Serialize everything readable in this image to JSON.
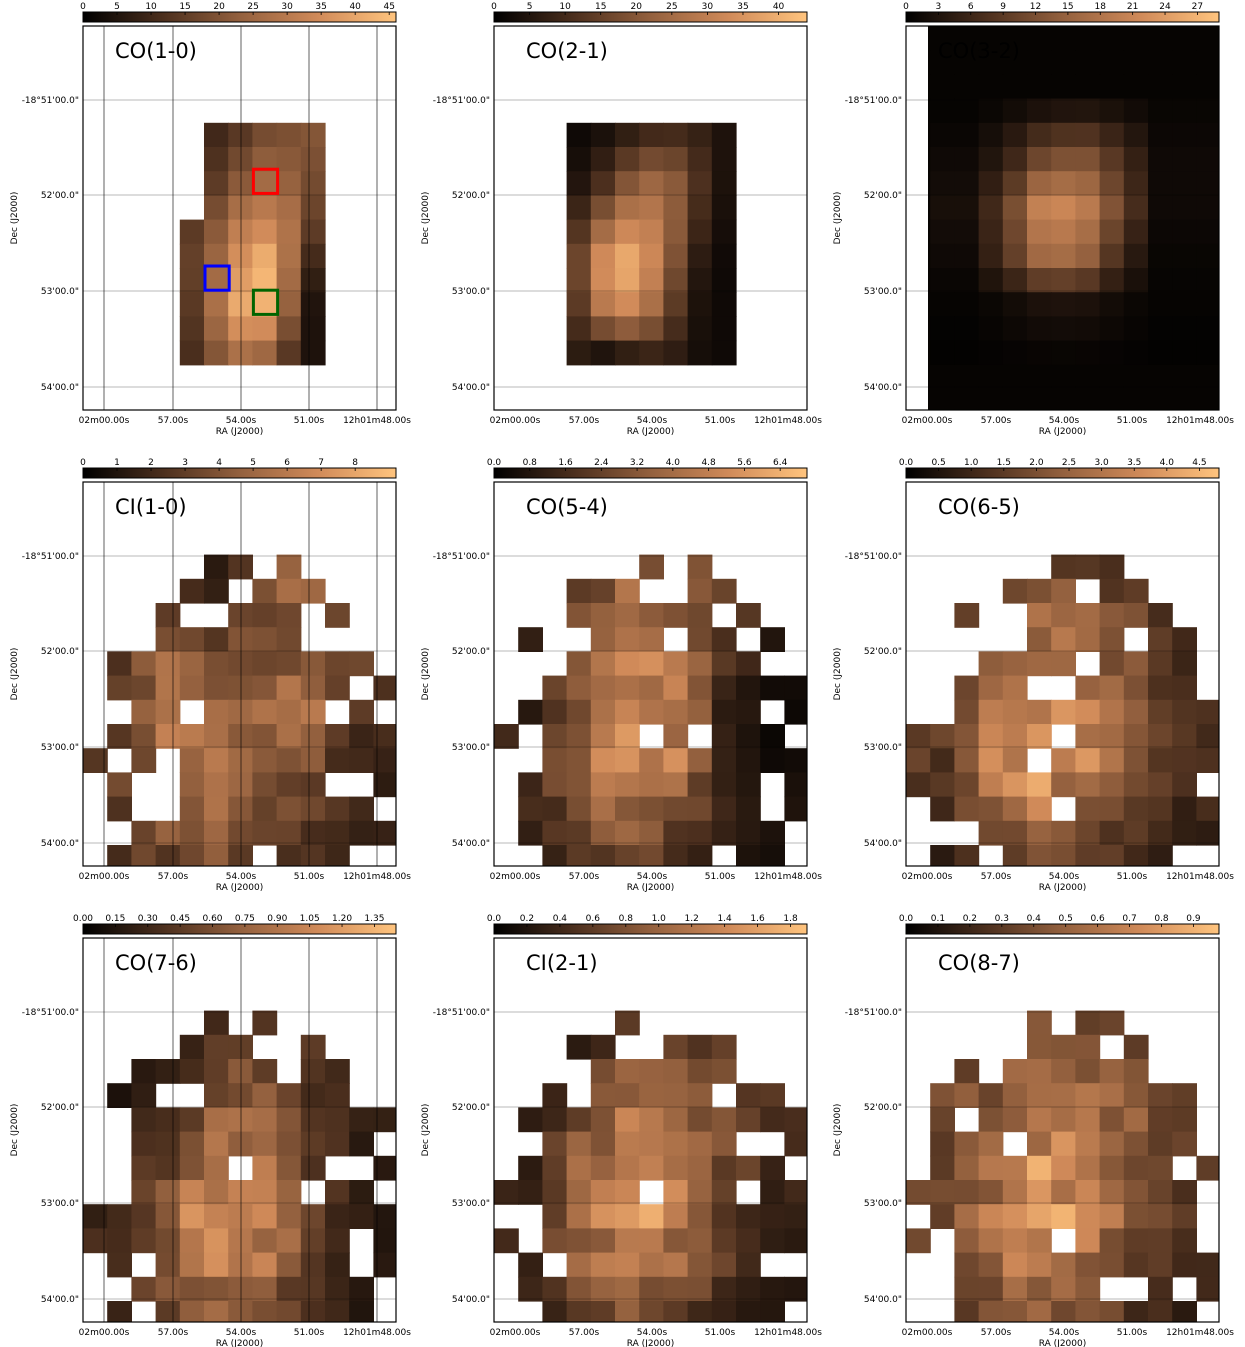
{
  "figure": {
    "colormap": "copper",
    "colormap_stops": [
      "#000000",
      "#4a2e1d",
      "#93603e",
      "#d08a59",
      "#ffc47e"
    ],
    "grid_color": "#000000",
    "common_x_ticks": [
      "02m00.00s",
      "57.00s",
      "54.00s",
      "51.00s",
      "12h01m48.00s"
    ],
    "common_y_ticks": [
      "-18°51'00.0\"",
      "52'00.0\"",
      "53'00.0\"",
      "54'00.0\""
    ],
    "x_label": "RA (J2000)",
    "y_label": "Dec (J2000)"
  },
  "chart_data": [
    {
      "type": "heatmap",
      "title": "CO(1-0)",
      "colorbar_ticks": [
        "0",
        "5",
        "10",
        "15",
        "20",
        "25",
        "30",
        "35",
        "40",
        "45"
      ],
      "vmax": 46,
      "x_ticks": [
        "02m00.00s",
        "57.00s",
        "54.00s",
        "51.00s",
        "12h01m48.00s"
      ],
      "y_ticks": [
        "-18°51'00.0\"",
        "52'00.0\"",
        "53'00.0\"",
        "54'00.0\""
      ],
      "xlabel": "RA (J2000)",
      "ylabel": "Dec (J2000)",
      "boxes": [
        {
          "color": "#ff0000",
          "col": 7,
          "row": 6
        },
        {
          "color": "#0000ff",
          "col": 5,
          "row": 10
        },
        {
          "color": "#006400",
          "col": 7,
          "row": 11
        }
      ],
      "grid_rows": [
        "    ########    ",
        "    ########    ",
        "    ########    ",
        "    ########    ",
        "   #########    ",
        "   #########    ",
        "   #########    ",
        "   #########    ",
        "   #########    ",
        "   #########    "
      ],
      "values": [
        [
          0.18,
          0.22,
          0.3,
          0.4,
          0.42,
          0.45
        ],
        [
          0.22,
          0.3,
          0.45,
          0.55,
          0.5,
          0.4
        ],
        [
          0.3,
          0.45,
          0.65,
          0.7,
          0.62,
          0.35
        ],
        [
          0.35,
          0.55,
          0.8,
          0.95,
          0.6,
          0.2
        ],
        [
          0.3,
          0.6,
          0.9,
          0.92,
          0.5,
          0.1
        ],
        [
          0.25,
          0.45,
          0.6,
          0.55,
          0.3,
          0.1
        ]
      ]
    },
    {
      "type": "heatmap",
      "title": "CO(2-1)",
      "colorbar_ticks": [
        "0",
        "5",
        "10",
        "15",
        "20",
        "25",
        "30",
        "35",
        "40"
      ],
      "vmax": 44,
      "x_ticks": [
        "02m00.00s",
        "57.00s",
        "54.00s",
        "51.00s",
        "12h01m48.00s"
      ],
      "y_ticks": [
        "-18°51'00.0\"",
        "52'00.0\"",
        "53'00.0\"",
        "54'00.0\""
      ],
      "xlabel": "RA (J2000)",
      "ylabel": "Dec (J2000)",
      "values": [
        [
          0.05,
          0.1,
          0.2,
          0.25,
          0.2,
          0.1
        ],
        [
          0.1,
          0.25,
          0.5,
          0.55,
          0.3,
          0.1
        ],
        [
          0.25,
          0.55,
          0.75,
          0.6,
          0.25,
          0.08
        ],
        [
          0.4,
          0.9,
          0.95,
          0.55,
          0.15,
          0.05
        ],
        [
          0.3,
          0.7,
          0.75,
          0.4,
          0.1,
          0.05
        ],
        [
          0.15,
          0.1,
          0.2,
          0.2,
          0.08,
          0.05
        ]
      ]
    },
    {
      "type": "heatmap",
      "title": "CO(3-2)",
      "colorbar_ticks": [
        "0",
        "3",
        "6",
        "9",
        "12",
        "15",
        "18",
        "21",
        "24",
        "27"
      ],
      "vmax": 29,
      "x_ticks": [
        "02m00.00s",
        "57.00s",
        "54.00s",
        "51.00s",
        "12h01m48.00s"
      ],
      "y_ticks": [
        "-18°51'00.0\"",
        "52'00.0\"",
        "53'00.0\"",
        "54'00.0\""
      ],
      "xlabel": "RA (J2000)",
      "ylabel": "Dec (J2000)",
      "values": [
        [
          0.02,
          0.05,
          0.1,
          0.12,
          0.08,
          0.03
        ],
        [
          0.05,
          0.15,
          0.4,
          0.45,
          0.25,
          0.05
        ],
        [
          0.08,
          0.3,
          0.75,
          0.7,
          0.35,
          0.05
        ],
        [
          0.05,
          0.25,
          0.6,
          0.55,
          0.2,
          0.03
        ],
        [
          0.02,
          0.05,
          0.1,
          0.1,
          0.05,
          0.02
        ],
        [
          0.01,
          0.02,
          0.03,
          0.03,
          0.02,
          0.01
        ]
      ]
    },
    {
      "type": "heatmap",
      "title": "CI(1-0)",
      "colorbar_ticks": [
        "0",
        "1",
        "2",
        "3",
        "4",
        "5",
        "6",
        "7",
        "8"
      ],
      "vmax": 9.2,
      "x_ticks": [
        "02m00.00s",
        "57.00s",
        "54.00s",
        "51.00s",
        "12h01m48.00s"
      ],
      "y_ticks": [
        "-18°51'00.0\"",
        "52'00.0\"",
        "53'00.0\"",
        "54'00.0\""
      ],
      "xlabel": "RA (J2000)",
      "ylabel": "Dec (J2000)",
      "values": [
        [
          0.1,
          0.3,
          0.15,
          0.4,
          0.6,
          0.3
        ],
        [
          0.25,
          0.45,
          0.35,
          0.4,
          0.5,
          0.35
        ],
        [
          0.3,
          0.55,
          0.45,
          0.5,
          0.6,
          0.3
        ],
        [
          0.35,
          0.6,
          0.7,
          0.55,
          0.4,
          0.2
        ],
        [
          0.3,
          0.45,
          0.5,
          0.4,
          0.3,
          0.2
        ],
        [
          0.25,
          0.3,
          0.35,
          0.3,
          0.2,
          0.1
        ]
      ]
    },
    {
      "type": "heatmap",
      "title": "CO(5-4)",
      "colorbar_ticks": [
        "0.0",
        "0.8",
        "1.6",
        "2.4",
        "3.2",
        "4.0",
        "4.8",
        "5.6",
        "6.4"
      ],
      "vmax": 7.0,
      "x_ticks": [
        "02m00.00s",
        "57.00s",
        "54.00s",
        "51.00s",
        "12h01m48.00s"
      ],
      "y_ticks": [
        "-18°51'00.0\"",
        "52'00.0\"",
        "53'00.0\"",
        "54'00.0\""
      ],
      "xlabel": "RA (J2000)",
      "ylabel": "Dec (J2000)",
      "values": [
        [
          0.1,
          0.3,
          0.5,
          0.45,
          0.3,
          0.2
        ],
        [
          0.2,
          0.4,
          0.65,
          0.6,
          0.35,
          0.15
        ],
        [
          0.15,
          0.45,
          0.75,
          0.6,
          0.2,
          0.05
        ],
        [
          0.2,
          0.5,
          0.85,
          0.7,
          0.15,
          0.05
        ],
        [
          0.2,
          0.4,
          0.5,
          0.4,
          0.2,
          0.1
        ],
        [
          0.15,
          0.2,
          0.25,
          0.2,
          0.1,
          0.05
        ]
      ]
    },
    {
      "type": "heatmap",
      "title": "CO(6-5)",
      "colorbar_ticks": [
        "0.0",
        "0.5",
        "1.0",
        "1.5",
        "2.0",
        "2.5",
        "3.0",
        "3.5",
        "4.0",
        "4.5"
      ],
      "vmax": 4.8,
      "x_ticks": [
        "02m00.00s",
        "57.00s",
        "54.00s",
        "51.00s",
        "12h01m48.00s"
      ],
      "y_ticks": [
        "-18°51'00.0\"",
        "52'00.0\"",
        "53'00.0\"",
        "54'00.0\""
      ],
      "xlabel": "RA (J2000)",
      "ylabel": "Dec (J2000)",
      "values": [
        [
          0.15,
          0.3,
          0.4,
          0.35,
          0.25,
          0.15
        ],
        [
          0.25,
          0.45,
          0.55,
          0.5,
          0.4,
          0.2
        ],
        [
          0.3,
          0.55,
          0.7,
          0.6,
          0.45,
          0.25
        ],
        [
          0.3,
          0.65,
          0.9,
          0.7,
          0.45,
          0.25
        ],
        [
          0.25,
          0.45,
          0.55,
          0.45,
          0.3,
          0.2
        ],
        [
          0.15,
          0.25,
          0.3,
          0.25,
          0.15,
          0.1
        ]
      ]
    },
    {
      "type": "heatmap",
      "title": "CO(7-6)",
      "colorbar_ticks": [
        "0.00",
        "0.15",
        "0.30",
        "0.45",
        "0.60",
        "0.75",
        "0.90",
        "1.05",
        "1.20",
        "1.35"
      ],
      "vmax": 1.45,
      "x_ticks": [
        "02m00.00s",
        "57.00s",
        "54.00s",
        "51.00s",
        "12h01m48.00s"
      ],
      "y_ticks": [
        "-18°51'00.0\"",
        "52'00.0\"",
        "53'00.0\"",
        "54'00.0\""
      ],
      "xlabel": "RA (J2000)",
      "ylabel": "Dec (J2000)",
      "values": [
        [
          0.1,
          0.15,
          0.2,
          0.25,
          0.3,
          0.2
        ],
        [
          0.1,
          0.2,
          0.4,
          0.45,
          0.3,
          0.2
        ],
        [
          0.15,
          0.3,
          0.6,
          0.55,
          0.3,
          0.15
        ],
        [
          0.2,
          0.45,
          0.85,
          0.75,
          0.35,
          0.15
        ],
        [
          0.25,
          0.45,
          0.65,
          0.55,
          0.3,
          0.15
        ],
        [
          0.2,
          0.25,
          0.35,
          0.3,
          0.2,
          0.1
        ]
      ]
    },
    {
      "type": "heatmap",
      "title": "CI(2-1)",
      "colorbar_ticks": [
        "0.0",
        "0.2",
        "0.4",
        "0.6",
        "0.8",
        "1.0",
        "1.2",
        "1.4",
        "1.6",
        "1.8"
      ],
      "vmax": 1.9,
      "x_ticks": [
        "02m00.00s",
        "57.00s",
        "54.00s",
        "51.00s",
        "12h01m48.00s"
      ],
      "y_ticks": [
        "-18°51'00.0\"",
        "52'00.0\"",
        "53'00.0\"",
        "54'00.0\""
      ],
      "xlabel": "RA (J2000)",
      "ylabel": "Dec (J2000)",
      "values": [
        [
          0.05,
          0.1,
          0.25,
          0.3,
          0.3,
          0.2
        ],
        [
          0.1,
          0.3,
          0.5,
          0.5,
          0.4,
          0.25
        ],
        [
          0.15,
          0.45,
          0.7,
          0.6,
          0.4,
          0.25
        ],
        [
          0.2,
          0.55,
          0.85,
          0.65,
          0.35,
          0.2
        ],
        [
          0.2,
          0.45,
          0.6,
          0.5,
          0.3,
          0.15
        ],
        [
          0.1,
          0.25,
          0.3,
          0.25,
          0.15,
          0.1
        ]
      ]
    },
    {
      "type": "heatmap",
      "title": "CO(8-7)",
      "colorbar_ticks": [
        "0.0",
        "0.1",
        "0.2",
        "0.3",
        "0.4",
        "0.5",
        "0.6",
        "0.7",
        "0.8",
        "0.9"
      ],
      "vmax": 0.98,
      "x_ticks": [
        "02m00.00s",
        "57.00s",
        "54.00s",
        "51.00s",
        "12h01m48.00s"
      ],
      "y_ticks": [
        "-18°51'00.0\"",
        "52'00.0\"",
        "53'00.0\"",
        "54'00.0\""
      ],
      "xlabel": "RA (J2000)",
      "ylabel": "Dec (J2000)",
      "values": [
        [
          0.3,
          0.35,
          0.4,
          0.35,
          0.3,
          0.25
        ],
        [
          0.35,
          0.45,
          0.55,
          0.55,
          0.45,
          0.35
        ],
        [
          0.35,
          0.55,
          0.7,
          0.65,
          0.5,
          0.35
        ],
        [
          0.35,
          0.6,
          0.85,
          0.7,
          0.45,
          0.3
        ],
        [
          0.3,
          0.5,
          0.65,
          0.55,
          0.35,
          0.25
        ],
        [
          0.2,
          0.3,
          0.35,
          0.3,
          0.2,
          0.15
        ]
      ]
    }
  ]
}
